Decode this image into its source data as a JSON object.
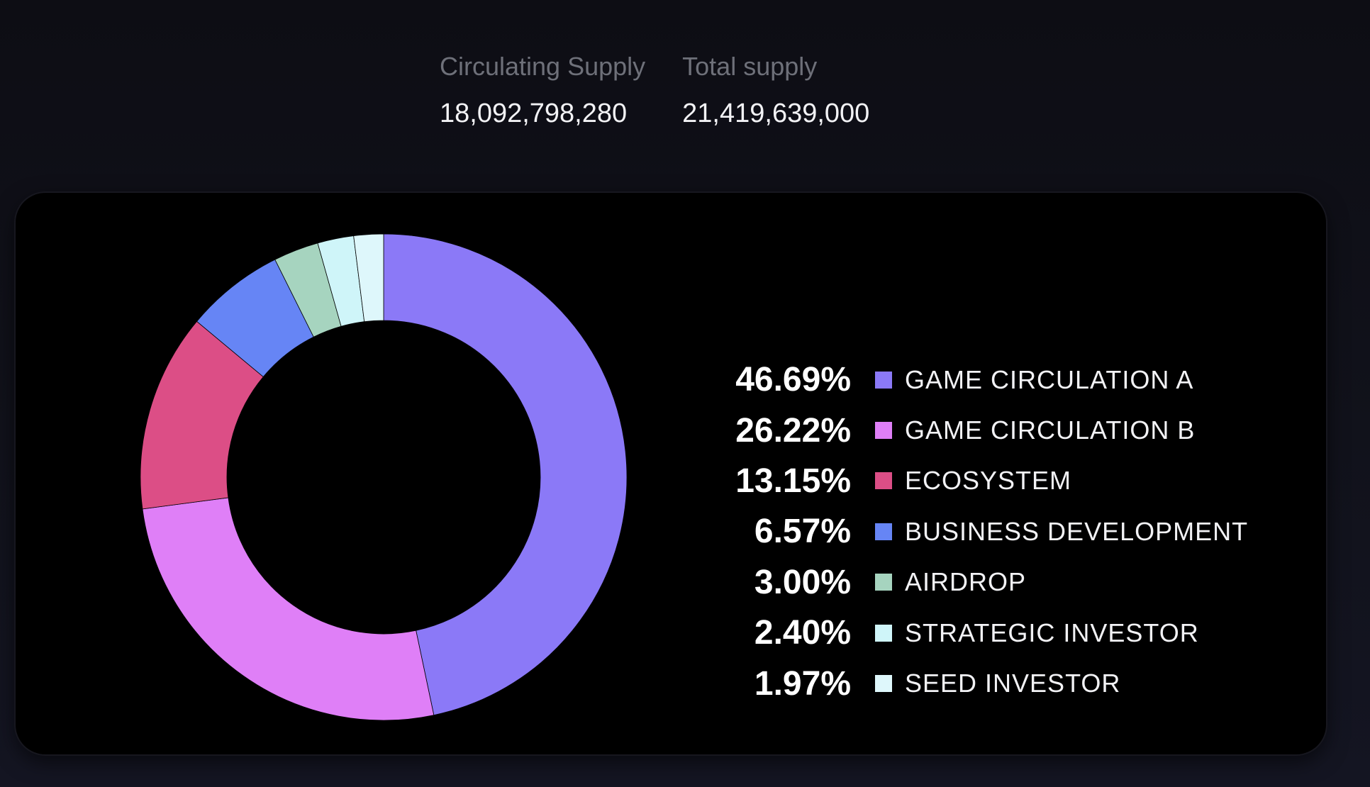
{
  "supply": {
    "circulating_label": "Circulating Supply",
    "circulating_value": "18,092,798,280",
    "total_label": "Total supply",
    "total_value": "21,419,639,000"
  },
  "chart_data": {
    "type": "pie",
    "title": "",
    "donut": true,
    "start_angle": "12 o'clock",
    "direction": "clockwise",
    "legend_placement": "right",
    "slices": [
      {
        "label": "GAME CIRCULATION A",
        "percent_label": "46.69%",
        "value": 46.69,
        "color": "#8b79f7"
      },
      {
        "label": "GAME CIRCULATION B",
        "percent_label": "26.22%",
        "value": 26.22,
        "color": "#df7ff7"
      },
      {
        "label": "ECOSYSTEM",
        "percent_label": "13.15%",
        "value": 13.15,
        "color": "#dc4e86"
      },
      {
        "label": "BUSINESS DEVELOPMENT",
        "percent_label": "6.57%",
        "value": 6.57,
        "color": "#6685f5"
      },
      {
        "label": "AIRDROP",
        "percent_label": "3.00%",
        "value": 3.0,
        "color": "#a6d4bf"
      },
      {
        "label": "STRATEGIC INVESTOR",
        "percent_label": "2.40%",
        "value": 2.4,
        "color": "#cff5f9"
      },
      {
        "label": "SEED INVESTOR",
        "percent_label": "1.97%",
        "value": 1.97,
        "color": "#def7fb"
      }
    ]
  }
}
